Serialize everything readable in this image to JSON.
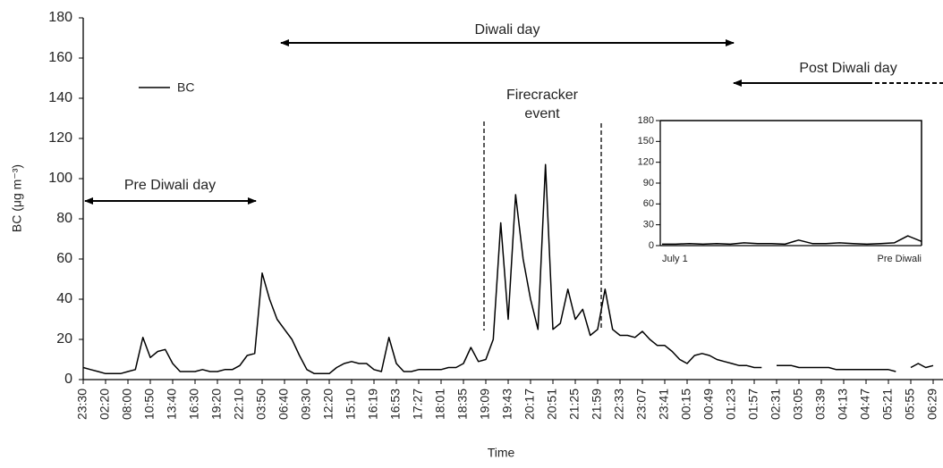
{
  "chart_data": [
    {
      "type": "line",
      "y_label": "BC (μg m⁻³)",
      "x_label": "Time",
      "categories": [
        "23:30",
        null,
        null,
        "02:20",
        null,
        null,
        "08:00",
        null,
        null,
        "10:50",
        null,
        null,
        "13:40",
        null,
        null,
        "16:30",
        null,
        null,
        "19:20",
        null,
        null,
        "22:10",
        null,
        null,
        "03:50",
        null,
        null,
        "06:40",
        null,
        null,
        "09:30",
        null,
        null,
        "12:20",
        null,
        null,
        "15:10",
        null,
        null,
        "16:19",
        null,
        null,
        "16:53",
        null,
        null,
        "17:27",
        null,
        null,
        "18:01",
        null,
        null,
        "18:35",
        null,
        null,
        "19:09",
        null,
        null,
        "19:43",
        null,
        null,
        "20:17",
        null,
        null,
        "20:51",
        null,
        null,
        "21:25",
        null,
        null,
        "21:59",
        null,
        null,
        "22:33",
        null,
        null,
        "23:07",
        null,
        null,
        "23:41",
        null,
        null,
        "00:15",
        null,
        null,
        "00:49",
        null,
        null,
        "01:23",
        null,
        null,
        "01:57",
        null,
        null,
        "02:31",
        null,
        null,
        "03:05",
        null,
        null,
        "03:39",
        null,
        null,
        "04:13",
        null,
        null,
        "04:47",
        null,
        null,
        "05:21",
        null,
        null,
        "05:55",
        null,
        null,
        "06:29"
      ],
      "series": [
        {
          "name": "BC",
          "color": "#000000",
          "values": [
            6,
            5,
            4,
            3,
            3,
            3,
            4,
            5,
            21,
            11,
            14,
            15,
            8,
            4,
            4,
            4,
            5,
            4,
            4,
            5,
            5,
            7,
            12,
            13,
            53,
            40,
            30,
            25,
            20,
            12,
            5,
            3,
            3,
            3,
            6,
            8,
            9,
            8,
            8,
            5,
            4,
            21,
            8,
            4,
            4,
            5,
            5,
            5,
            5,
            6,
            6,
            8,
            16,
            9,
            10,
            20,
            78,
            30,
            92,
            60,
            40,
            25,
            107,
            25,
            28,
            45,
            30,
            35,
            22,
            25,
            45,
            25,
            22,
            22,
            21,
            24,
            20,
            17,
            17,
            14,
            10,
            8,
            12,
            13,
            12,
            10,
            9,
            8,
            7,
            7,
            6,
            6,
            null,
            7,
            7,
            7,
            6,
            6,
            6,
            6,
            6,
            5,
            5,
            5,
            5,
            5,
            5,
            5,
            5,
            4,
            null,
            6,
            8,
            6,
            7
          ]
        }
      ],
      "ylim": [
        0,
        180
      ],
      "yticks": [
        0,
        20,
        40,
        60,
        80,
        100,
        120,
        140,
        160,
        180
      ],
      "annotations": [
        "Pre Diwali day",
        "Diwali day",
        "Post Diwali day",
        "Firecracker",
        "event"
      ]
    },
    {
      "type": "line",
      "categories": [
        "July 1",
        null,
        null,
        null,
        null,
        null,
        null,
        null,
        null,
        null,
        null,
        null,
        null,
        null,
        null,
        null,
        null,
        null,
        null,
        "Pre Diwali"
      ],
      "series": [
        {
          "name": "BC",
          "color": "#000000",
          "values": [
            2,
            2,
            3,
            2,
            3,
            2,
            4,
            3,
            3,
            2,
            8,
            3,
            3,
            4,
            3,
            2,
            3,
            4,
            14,
            6
          ]
        }
      ],
      "ylim": [
        0,
        180
      ],
      "yticks": [
        0,
        30,
        60,
        90,
        120,
        150,
        180
      ]
    }
  ]
}
